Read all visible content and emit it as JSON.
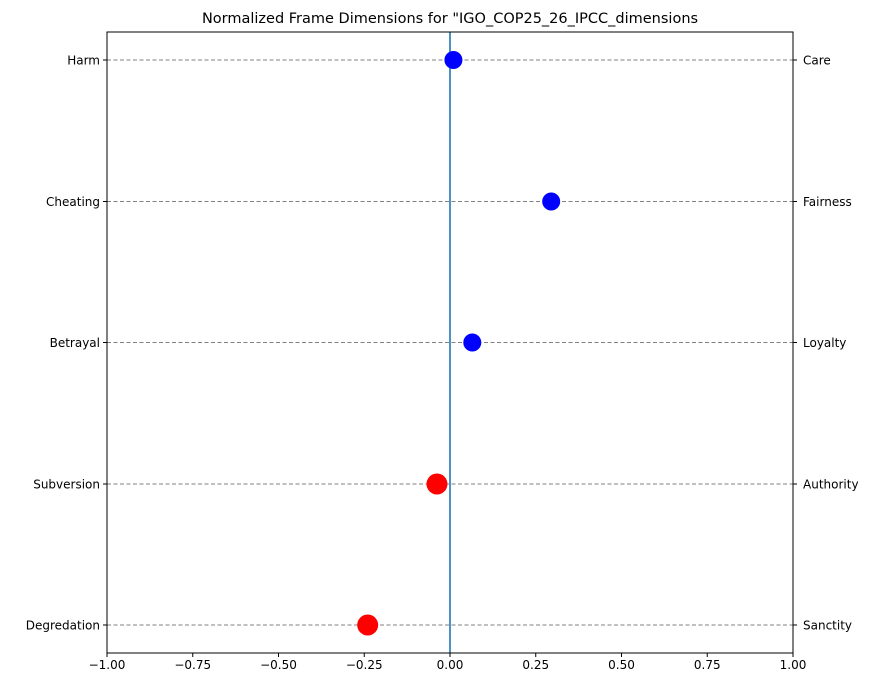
{
  "chart_data": {
    "type": "scatter",
    "title": "Normalized Frame Dimensions for \"IGO_COP25_26_IPCC_dimensions",
    "xlim": [
      -1.0,
      1.0
    ],
    "x_ticks": [
      -1.0,
      -0.75,
      -0.5,
      -0.25,
      0.0,
      0.25,
      0.5,
      0.75,
      1.0
    ],
    "x_tick_labels": [
      "−1.00",
      "−0.75",
      "−0.50",
      "−0.25",
      "0.00",
      "0.25",
      "0.50",
      "0.75",
      "1.00"
    ],
    "left_labels": [
      "Harm",
      "Cheating",
      "Betrayal",
      "Subversion",
      "Degredation"
    ],
    "right_labels": [
      "Care",
      "Fairness",
      "Loyalty",
      "Authority",
      "Sanctity"
    ],
    "values": [
      0.01,
      0.295,
      0.065,
      -0.038,
      -0.24
    ],
    "colors": [
      "#0000ff",
      "#0000ff",
      "#0000ff",
      "#ff0000",
      "#ff0000"
    ],
    "grid": "horizontal-dashed",
    "center_line_color": "#1f77b4"
  }
}
